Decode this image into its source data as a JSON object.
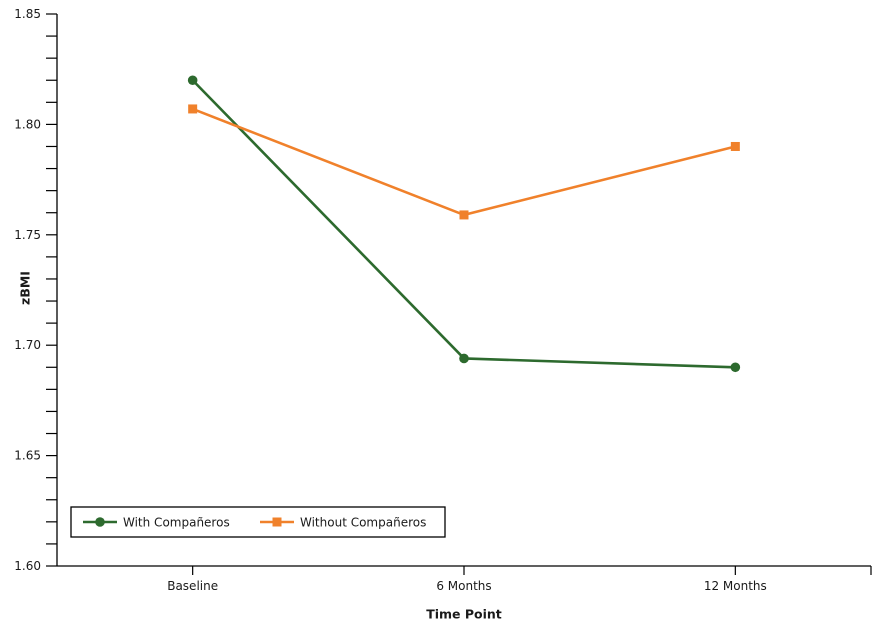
{
  "chart_data": {
    "type": "line",
    "title": "",
    "xlabel": "Time Point",
    "ylabel": "zBMI",
    "categories": [
      "Baseline",
      "6 Months",
      "12 Months"
    ],
    "series": [
      {
        "name": "With Compañeros",
        "marker": "circle",
        "color": "#2D6A2E",
        "values": [
          1.82,
          1.694,
          1.69
        ]
      },
      {
        "name": "Without Compañeros",
        "marker": "square",
        "color": "#F0812B",
        "values": [
          1.807,
          1.759,
          1.79
        ]
      }
    ],
    "ylim": [
      1.6,
      1.85
    ],
    "ytick_minor_step": 0.01,
    "ytick_major_step": 0.05,
    "ytick_labels": [
      "1.60",
      "1.65",
      "1.70",
      "1.75",
      "1.80",
      "1.85"
    ],
    "grid": false,
    "legend": {
      "position": "bottom-left",
      "border": true
    }
  },
  "colors": {
    "axis": "#000000",
    "text": "#1a1a1a",
    "background": "#ffffff"
  }
}
